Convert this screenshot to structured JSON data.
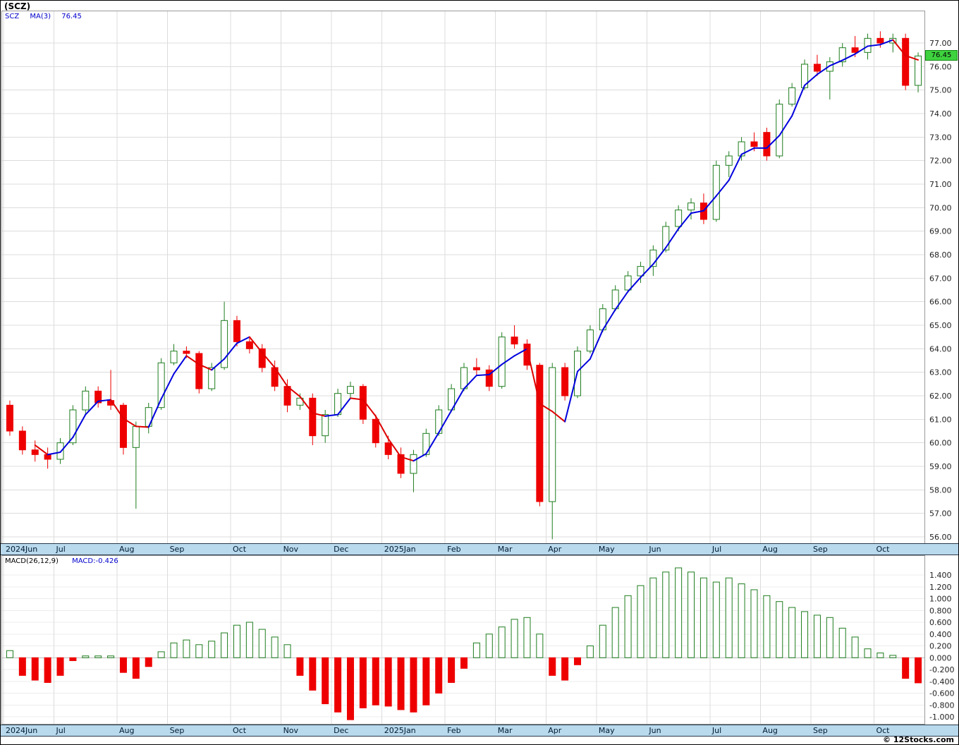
{
  "title": "(SCZ)",
  "price_panel": {
    "legend": {
      "symbol": "SCZ",
      "ma_label": "MA(3)",
      "ma_value": "76.45"
    },
    "last_price_badge": "76.45"
  },
  "macd_panel": {
    "legend": {
      "label": "MACD(26,12,9)",
      "value": "MACD:-0.426"
    }
  },
  "footer": {
    "watermark": "© 12Stocks.com"
  },
  "colors": {
    "up": "#1e7d1e",
    "down": "#ee0000",
    "ma_up": "#0000dd",
    "ma_down": "#dd0000",
    "grid": "#dcdcdc",
    "panel_border": "#9a9a9a",
    "strip_bg": "#b9d9ec",
    "badge_bg": "#3fd23f",
    "legend_blue": "#0000cc"
  },
  "chart_data": [
    {
      "type": "candlestick",
      "title": "(SCZ)",
      "subtitle": "weekly candlesticks with MA(3) overlay",
      "x_axis": {
        "tick_labels": [
          "2024Jun",
          "Jul",
          "Aug",
          "Sep",
          "Oct",
          "Nov",
          "Dec",
          "2025Jan",
          "Feb",
          "Mar",
          "Apr",
          "May",
          "Jun",
          "Jul",
          "Aug",
          "Sep",
          "Oct"
        ],
        "month_start_index": [
          0,
          4,
          9,
          13,
          18,
          22,
          26,
          30,
          35,
          39,
          43,
          47,
          51,
          56,
          60,
          64,
          69
        ]
      },
      "y_axis": {
        "top_tick": 77.0,
        "bottom_tick": 56.0,
        "tick_step": 1.0
      },
      "ma_period": 3,
      "last_price": 76.45,
      "candles_ohlc": [
        [
          61.6,
          61.8,
          60.3,
          60.5
        ],
        [
          60.5,
          60.7,
          59.5,
          59.7
        ],
        [
          59.7,
          60.1,
          59.2,
          59.5
        ],
        [
          59.5,
          59.8,
          58.9,
          59.3
        ],
        [
          59.3,
          60.2,
          59.1,
          60.0
        ],
        [
          60.0,
          61.6,
          59.9,
          61.4
        ],
        [
          61.4,
          62.4,
          61.2,
          62.2
        ],
        [
          62.2,
          62.4,
          61.5,
          61.7
        ],
        [
          61.8,
          63.1,
          61.4,
          61.6
        ],
        [
          61.6,
          61.7,
          59.5,
          59.8
        ],
        [
          59.8,
          60.9,
          57.2,
          60.7
        ],
        [
          60.7,
          61.7,
          60.4,
          61.5
        ],
        [
          61.5,
          63.6,
          61.4,
          63.4
        ],
        [
          63.4,
          64.2,
          63.3,
          63.9
        ],
        [
          63.9,
          64.1,
          63.6,
          63.8
        ],
        [
          63.8,
          63.9,
          62.1,
          62.3
        ],
        [
          62.3,
          63.4,
          62.2,
          63.2
        ],
        [
          63.2,
          66.0,
          63.1,
          65.2
        ],
        [
          65.2,
          65.4,
          64.1,
          64.3
        ],
        [
          64.3,
          64.5,
          63.8,
          64.0
        ],
        [
          64.0,
          64.2,
          63.0,
          63.2
        ],
        [
          63.2,
          63.5,
          62.2,
          62.4
        ],
        [
          62.4,
          62.7,
          61.3,
          61.6
        ],
        [
          61.6,
          62.1,
          61.4,
          61.9
        ],
        [
          61.9,
          62.1,
          59.9,
          60.3
        ],
        [
          60.3,
          61.4,
          60.0,
          61.2
        ],
        [
          61.2,
          62.3,
          61.1,
          62.1
        ],
        [
          62.1,
          62.6,
          61.9,
          62.4
        ],
        [
          62.4,
          62.5,
          60.8,
          61.0
        ],
        [
          61.0,
          61.2,
          59.8,
          60.0
        ],
        [
          60.0,
          60.3,
          59.3,
          59.5
        ],
        [
          59.5,
          59.8,
          58.5,
          58.7
        ],
        [
          58.7,
          59.7,
          57.9,
          59.5
        ],
        [
          59.5,
          60.6,
          59.4,
          60.4
        ],
        [
          60.4,
          61.6,
          60.3,
          61.4
        ],
        [
          61.4,
          62.5,
          61.3,
          62.3
        ],
        [
          62.3,
          63.4,
          62.2,
          63.2
        ],
        [
          63.2,
          63.6,
          62.9,
          63.1
        ],
        [
          63.1,
          63.3,
          62.2,
          62.4
        ],
        [
          62.4,
          64.7,
          62.3,
          64.5
        ],
        [
          64.5,
          65.0,
          64.0,
          64.2
        ],
        [
          64.2,
          64.4,
          63.1,
          63.3
        ],
        [
          63.3,
          63.4,
          57.3,
          57.5
        ],
        [
          57.5,
          63.4,
          55.9,
          63.2
        ],
        [
          63.2,
          63.4,
          61.8,
          62.0
        ],
        [
          62.0,
          64.1,
          61.9,
          63.9
        ],
        [
          63.9,
          65.0,
          63.8,
          64.8
        ],
        [
          64.8,
          65.9,
          64.7,
          65.7
        ],
        [
          65.7,
          66.7,
          65.6,
          66.5
        ],
        [
          66.5,
          67.3,
          66.4,
          67.1
        ],
        [
          67.1,
          67.7,
          66.8,
          67.5
        ],
        [
          67.5,
          68.4,
          67.1,
          68.2
        ],
        [
          68.2,
          69.4,
          68.1,
          69.2
        ],
        [
          69.2,
          70.1,
          69.0,
          69.9
        ],
        [
          69.9,
          70.4,
          69.5,
          70.2
        ],
        [
          70.2,
          70.6,
          69.3,
          69.5
        ],
        [
          69.5,
          72.0,
          69.4,
          71.8
        ],
        [
          71.8,
          72.4,
          71.3,
          72.2
        ],
        [
          72.2,
          73.0,
          72.0,
          72.8
        ],
        [
          72.8,
          73.2,
          72.4,
          72.6
        ],
        [
          73.2,
          73.4,
          72.0,
          72.2
        ],
        [
          72.2,
          74.6,
          72.1,
          74.4
        ],
        [
          74.4,
          75.3,
          74.3,
          75.1
        ],
        [
          75.1,
          76.3,
          75.0,
          76.1
        ],
        [
          76.1,
          76.5,
          75.6,
          75.8
        ],
        [
          75.8,
          76.4,
          74.6,
          76.2
        ],
        [
          76.2,
          77.0,
          76.0,
          76.8
        ],
        [
          76.8,
          77.3,
          76.4,
          76.6
        ],
        [
          76.6,
          77.4,
          76.3,
          77.2
        ],
        [
          77.2,
          77.5,
          76.8,
          77.0
        ],
        [
          77.0,
          77.4,
          76.6,
          77.2
        ],
        [
          77.2,
          77.4,
          75.0,
          75.2
        ],
        [
          75.2,
          76.6,
          74.9,
          76.45
        ]
      ]
    },
    {
      "type": "bar",
      "name": "MACD(26,12,9)",
      "last_value": -0.426,
      "y_axis": {
        "top_tick": 1.4,
        "bottom_tick": -1.0,
        "tick_step": 0.2
      },
      "values": [
        0.12,
        -0.3,
        -0.38,
        -0.42,
        -0.3,
        -0.05,
        0.03,
        0.03,
        0.03,
        -0.25,
        -0.35,
        -0.15,
        0.1,
        0.25,
        0.3,
        0.22,
        0.28,
        0.42,
        0.55,
        0.6,
        0.48,
        0.35,
        0.22,
        -0.3,
        -0.55,
        -0.78,
        -0.92,
        -1.05,
        -0.85,
        -0.8,
        -0.82,
        -0.88,
        -0.92,
        -0.8,
        -0.6,
        -0.42,
        -0.18,
        0.25,
        0.4,
        0.52,
        0.65,
        0.68,
        0.4,
        -0.3,
        -0.38,
        -0.12,
        0.2,
        0.55,
        0.85,
        1.05,
        1.22,
        1.35,
        1.45,
        1.52,
        1.45,
        1.35,
        1.28,
        1.35,
        1.25,
        1.15,
        1.05,
        0.95,
        0.85,
        0.78,
        0.72,
        0.68,
        0.5,
        0.35,
        0.15,
        0.08,
        0.04,
        -0.35,
        -0.426
      ]
    }
  ]
}
